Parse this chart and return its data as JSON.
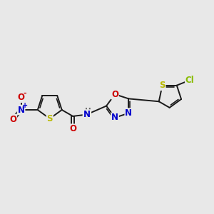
{
  "bg_color": "#e8e8e8",
  "bond_color": "#1a1a1a",
  "bond_width": 1.4,
  "atom_colors": {
    "S": "#b8b800",
    "O": "#cc0000",
    "N": "#0000cc",
    "Cl": "#88bb00",
    "H": "#666666",
    "C": "#1a1a1a"
  },
  "font_size_atom": 8.5,
  "font_size_small": 7.0
}
